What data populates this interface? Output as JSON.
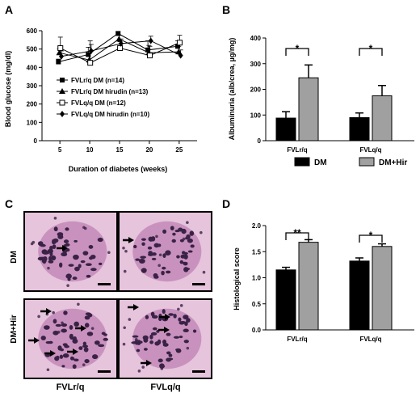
{
  "panel_labels": {
    "a": "A",
    "b": "B",
    "c": "C",
    "d": "D"
  },
  "colors": {
    "dm": "#000000",
    "dm_hir": "#a0a0a0",
    "tissue_bg": "#e6c4dc",
    "nucleus": "#3a2247",
    "cytoplasm": "#c38ab8"
  },
  "micrograph": {
    "row_labels": [
      "DM",
      "DM+Hir"
    ],
    "col_labels": [
      "FVLr/q",
      "FVLq/q"
    ]
  },
  "chart_data": [
    {
      "panel": "A",
      "type": "line",
      "xlabel": "Duration of diabetes (weeks)",
      "ylabel": "Blood glucose (mg/dl)",
      "xlim": [
        2,
        28
      ],
      "ylim": [
        0,
        600
      ],
      "x": [
        5,
        10,
        15,
        20,
        25
      ],
      "xticks": [
        5,
        10,
        15,
        20,
        25
      ],
      "yticks": [
        0,
        100,
        200,
        300,
        400,
        500,
        600
      ],
      "legend_position": "lower-center",
      "series": [
        {
          "name": "FVLr/q DM (n=14)",
          "marker": "filled-square",
          "values": [
            430,
            470,
            585,
            495,
            515
          ],
          "errors": [
            15,
            40,
            10,
            50,
            30
          ]
        },
        {
          "name": "FVLr/q DM hirudin (n=13)",
          "marker": "filled-triangle",
          "values": [
            480,
            440,
            555,
            480,
            485
          ],
          "errors": [
            20,
            35,
            20,
            40,
            30
          ]
        },
        {
          "name": "FVLq/q DM (n=12)",
          "marker": "open-square",
          "values": [
            505,
            425,
            505,
            465,
            535
          ],
          "errors": [
            60,
            120,
            35,
            50,
            40
          ]
        },
        {
          "name": "FVLq/q DM hirudin (n=10)",
          "marker": "filled-diamond",
          "values": [
            460,
            490,
            530,
            545,
            465
          ],
          "errors": [
            30,
            35,
            25,
            25,
            30
          ]
        }
      ]
    },
    {
      "panel": "B",
      "type": "bar",
      "ylabel": "Albuminuria (alb/crea, µg/mg)",
      "ylim": [
        0,
        400
      ],
      "yticks": [
        0,
        100,
        200,
        300,
        400
      ],
      "categories": [
        "FVLr/q",
        "FVLq/q"
      ],
      "series": [
        {
          "name": "DM",
          "values": [
            88,
            90
          ],
          "errors": [
            25,
            18
          ]
        },
        {
          "name": "DM+Hir",
          "values": [
            245,
            175
          ],
          "errors": [
            50,
            40
          ]
        }
      ],
      "significance": [
        "*",
        "*"
      ],
      "legend_position": "bottom"
    },
    {
      "panel": "D",
      "type": "bar",
      "ylabel": "Histological score",
      "ylim": [
        0,
        2.0
      ],
      "yticks": [
        "0.0",
        "0.5",
        "1.0",
        "1.5",
        "2.0"
      ],
      "categories": [
        "FVLr/q",
        "FVLq/q"
      ],
      "series": [
        {
          "name": "DM",
          "values": [
            1.15,
            1.32
          ],
          "errors": [
            0.05,
            0.06
          ]
        },
        {
          "name": "DM+Hir",
          "values": [
            1.68,
            1.6
          ],
          "errors": [
            0.05,
            0.05
          ]
        }
      ],
      "significance": [
        "**",
        "*"
      ]
    }
  ]
}
